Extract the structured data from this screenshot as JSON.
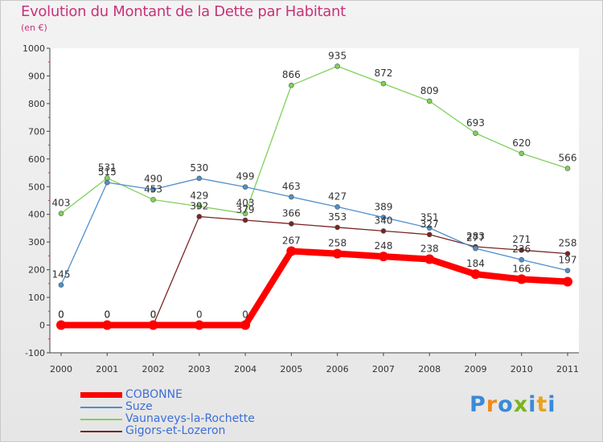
{
  "title": "Evolution du Montant de la Dette par Habitant",
  "subtitle": "(en €)",
  "logo": {
    "text": "Proxiti",
    "colors": [
      "#3a8ad8",
      "#f08a1c",
      "#3a8ad8",
      "#7ab51d",
      "#3a8ad8",
      "#e8a21c",
      "#3a8ad8"
    ]
  },
  "chart_data": {
    "type": "line",
    "x": [
      "2000",
      "2001",
      "2002",
      "2003",
      "2004",
      "2005",
      "2006",
      "2007",
      "2008",
      "2009",
      "2010",
      "2011"
    ],
    "ylim": [
      -100,
      1000
    ],
    "yticks": [
      "-100",
      "0",
      "100",
      "200",
      "300",
      "400",
      "500",
      "600",
      "700",
      "800",
      "900",
      "1000"
    ],
    "grid": false,
    "legend": "bottom-left",
    "series": [
      {
        "name": "COBONNE",
        "color": "#ff0000",
        "values": [
          0,
          0,
          0,
          0,
          0,
          267,
          258,
          248,
          238,
          184,
          166,
          157
        ],
        "labels": [
          "0",
          "0",
          "0",
          "0",
          "0",
          "267",
          "258",
          "248",
          "238",
          "184",
          "166",
          ""
        ]
      },
      {
        "name": "Suze",
        "color": "#4f8fcc",
        "values": [
          145,
          515,
          490,
          530,
          499,
          463,
          427,
          389,
          351,
          277,
          236,
          197
        ],
        "labels": [
          "145",
          "515",
          "490",
          "530",
          "499",
          "463",
          "427",
          "389",
          "351",
          "277",
          "236",
          "197"
        ]
      },
      {
        "name": "Vaunaveys-la-Rochette",
        "color": "#80d05c",
        "values": [
          403,
          531,
          453,
          429,
          403,
          866,
          935,
          872,
          809,
          693,
          620,
          566
        ],
        "labels": [
          "403",
          "531",
          "453",
          "429",
          "403",
          "866",
          "935",
          "872",
          "809",
          "693",
          "620",
          "566"
        ]
      },
      {
        "name": "Gigors-et-Lozeron",
        "color": "#7a2424",
        "values": [
          0,
          0,
          0,
          392,
          379,
          366,
          353,
          340,
          327,
          283,
          271,
          258
        ],
        "labels": [
          "0",
          "0",
          "0",
          "392",
          "379",
          "366",
          "353",
          "340",
          "327",
          "283",
          "271",
          "258"
        ]
      }
    ]
  }
}
